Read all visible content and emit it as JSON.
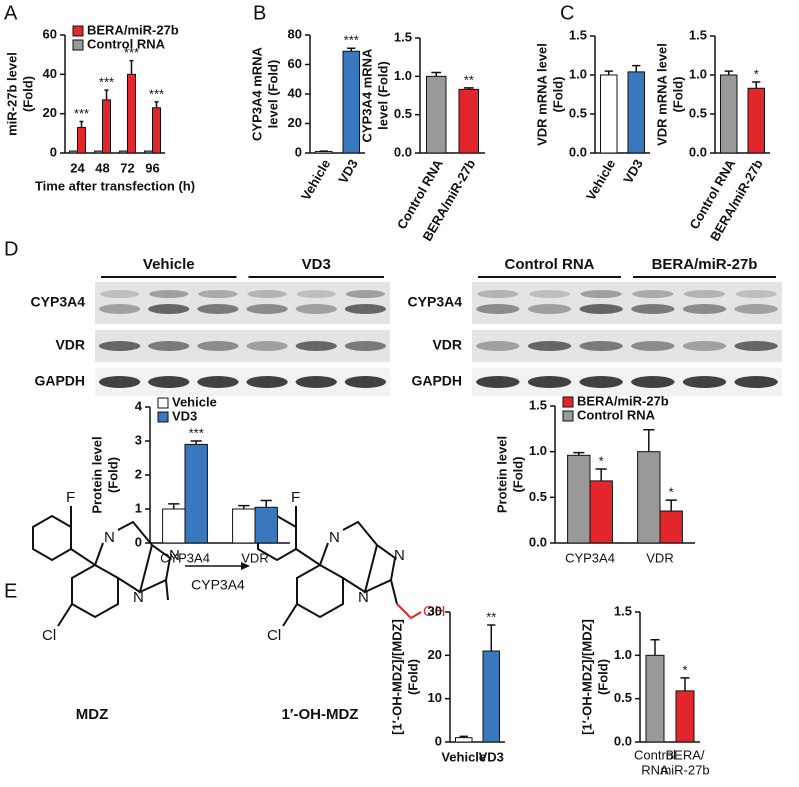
{
  "panel_labels": [
    "A",
    "B",
    "C",
    "D",
    "E"
  ],
  "blots": [
    {
      "groups": [
        "Vehicle",
        "VD3"
      ],
      "rows": [
        "CYP3A4",
        "VDR",
        "GAPDH"
      ]
    },
    {
      "groups": [
        "Control RNA",
        "BERA/miR-27b"
      ],
      "rows": [
        "CYP3A4",
        "VDR",
        "GAPDH"
      ]
    }
  ],
  "scheme": {
    "reactant": {
      "name": "MDZ",
      "atoms": [
        "F",
        "N",
        "N",
        "N",
        "Cl"
      ]
    },
    "product": {
      "name": "1′-OH-MDZ",
      "atoms": [
        "F",
        "N",
        "N",
        "N",
        "Cl",
        "OH"
      ]
    },
    "enzyme": "CYP3A4"
  },
  "chart_data": [
    {
      "type": "bar",
      "categories": [
        "24",
        "48",
        "72",
        "96"
      ],
      "series": [
        {
          "name": "BERA/miR-27b",
          "color": "#e3262b",
          "values": [
            13,
            27,
            40,
            23
          ],
          "errors": [
            3,
            5,
            7,
            3
          ],
          "significance": [
            "***",
            "***",
            "***",
            "***"
          ]
        },
        {
          "name": "Control RNA",
          "color": "#999999",
          "values": [
            1,
            1,
            1,
            1
          ]
        }
      ],
      "ylabel": [
        "miR-27b level",
        "(Fold)"
      ],
      "xlabel": "Time after transfection (h)",
      "ylim": [
        0,
        60
      ],
      "yticks": [
        0,
        20,
        40,
        60
      ],
      "legend": "upper left"
    },
    {
      "type": "bar",
      "categories": [
        "Vehicle",
        "VD3"
      ],
      "values": [
        1,
        69
      ],
      "errors": [
        0.3,
        2
      ],
      "colors": [
        "#ffffff",
        "#3a78bd"
      ],
      "significance": [
        null,
        "***"
      ],
      "ylabel": [
        "CYP3A4 mRNA",
        "level (Fold)"
      ],
      "ylim": [
        0,
        80
      ],
      "yticks": [
        0,
        20,
        40,
        60,
        80
      ]
    },
    {
      "type": "bar",
      "categories": [
        "Control RNA",
        "BERA/miR-27b"
      ],
      "values": [
        1.0,
        0.83
      ],
      "errors": [
        0.05,
        0.02
      ],
      "colors": [
        "#999999",
        "#e3262b"
      ],
      "significance": [
        null,
        "**"
      ],
      "ylabel": [
        "CYP3A4 mRNA",
        "level (Fold)"
      ],
      "ylim": [
        0,
        1.5
      ],
      "yticks": [
        {
          "value": 0,
          "label": "0.0"
        },
        0.5,
        {
          "value": 1,
          "label": "1.0"
        },
        1.5
      ]
    },
    {
      "type": "bar",
      "categories": [
        "Vehicle",
        "VD3"
      ],
      "values": [
        1.0,
        1.04
      ],
      "errors": [
        0.05,
        0.08
      ],
      "colors": [
        "#ffffff",
        "#3a78bd"
      ],
      "ylabel": [
        "VDR mRNA level",
        "(Fold)"
      ],
      "ylim": [
        0,
        1.5
      ],
      "yticks": [
        {
          "value": 0,
          "label": "0.0"
        },
        0.5,
        {
          "value": 1,
          "label": "1.0"
        },
        1.5
      ]
    },
    {
      "type": "bar",
      "categories": [
        "Control RNA",
        "BERA/miR-27b"
      ],
      "values": [
        1.0,
        0.83
      ],
      "errors": [
        0.05,
        0.08
      ],
      "colors": [
        "#999999",
        "#e3262b"
      ],
      "significance": [
        null,
        "*"
      ],
      "ylabel": [
        "VDR mRNA level",
        "(Fold)"
      ],
      "ylim": [
        0,
        1.5
      ],
      "yticks": [
        {
          "value": 0,
          "label": "0.0"
        },
        0.5,
        {
          "value": 1,
          "label": "1.0"
        },
        1.5
      ]
    },
    {
      "type": "bar",
      "categories": [
        "CYP3A4",
        "VDR"
      ],
      "series": [
        {
          "name": "Vehicle",
          "color": "#ffffff",
          "values": [
            1.0,
            1.0
          ],
          "errors": [
            0.15,
            0.1
          ]
        },
        {
          "name": "VD3",
          "color": "#3a78bd",
          "values": [
            2.9,
            1.05
          ],
          "errors": [
            0.1,
            0.2
          ],
          "significance": [
            "***",
            null
          ]
        }
      ],
      "ylabel": [
        "Protein level",
        "(Fold)"
      ],
      "ylim": [
        0,
        4
      ],
      "yticks": [
        0,
        1,
        2,
        3,
        4
      ],
      "legend": "upper left"
    },
    {
      "type": "bar",
      "categories": [
        "CYP3A4",
        "VDR"
      ],
      "series": [
        {
          "name": "BERA/miR-27b",
          "color": "#e3262b",
          "values": [
            0.68,
            0.35
          ],
          "errors": [
            0.13,
            0.12
          ],
          "significance": [
            "*",
            "*"
          ]
        },
        {
          "name": "Control RNA",
          "color": "#999999",
          "values": [
            0.96,
            1.0
          ],
          "errors": [
            0.03,
            0.24
          ]
        }
      ],
      "ylabel": [
        "Protein level",
        "(Fold)"
      ],
      "ylim": [
        0,
        1.5
      ],
      "yticks": [
        {
          "value": 0,
          "label": "0.0"
        },
        0.5,
        {
          "value": 1,
          "label": "1.0"
        },
        1.5
      ],
      "legend": "upper left"
    },
    {
      "type": "bar",
      "categories": [
        "Vehicle",
        "VD3"
      ],
      "values": [
        1,
        21
      ],
      "errors": [
        0.3,
        6
      ],
      "colors": [
        "#ffffff",
        "#3a78bd"
      ],
      "significance": [
        null,
        "**"
      ],
      "ylabel": [
        "[1′-OH-MDZ]/[MDZ]",
        "(Fold)"
      ],
      "ylim": [
        0,
        30
      ],
      "yticks": [
        0,
        10,
        20,
        30
      ]
    },
    {
      "type": "bar",
      "categories": [
        [
          "Control",
          "RNA"
        ],
        [
          "BERA/",
          "miR-27b"
        ]
      ],
      "values": [
        1.0,
        0.59
      ],
      "errors": [
        0.18,
        0.15
      ],
      "colors": [
        "#999999",
        "#e3262b"
      ],
      "significance": [
        null,
        "*"
      ],
      "ylabel": [
        "[1′-OH-MDZ]/[MDZ]",
        "(Fold)"
      ],
      "ylim": [
        0,
        1.5
      ],
      "yticks": [
        {
          "value": 0,
          "label": "0.0"
        },
        0.5,
        {
          "value": 1,
          "label": "1.0"
        },
        1.5
      ]
    }
  ]
}
